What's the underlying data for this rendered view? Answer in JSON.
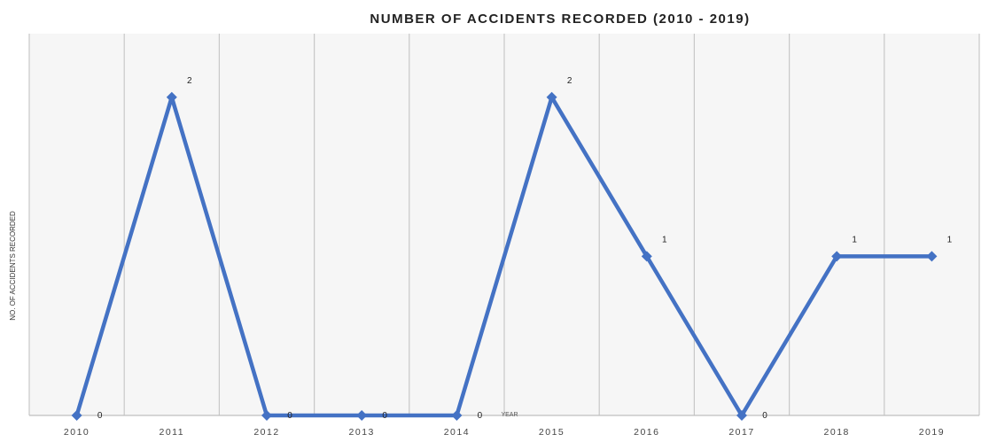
{
  "chart_data": {
    "type": "line",
    "title": "NUMBER OF ACCIDENTS RECORDED (2010 - 2019)",
    "xlabel": "YEAR",
    "ylabel": "NO. OF ACCIDENTS RECORDED",
    "categories": [
      "2010",
      "2011",
      "2012",
      "2013",
      "2014",
      "2015",
      "2016",
      "2017",
      "2018",
      "2019"
    ],
    "series": [
      {
        "values": [
          0,
          2,
          0,
          0,
          0,
          2,
          1,
          0,
          1,
          1
        ],
        "color": "#4472c4"
      }
    ],
    "data_labels": [
      "0",
      "2",
      "0",
      "0",
      "0",
      "2",
      "1",
      "0",
      "1",
      "1"
    ],
    "ylim": [
      0,
      2.4
    ],
    "grid": "vertical",
    "legend": "none",
    "colors": {
      "line": "#4472c4",
      "grid": "#c8c8c8",
      "plot_bg": "#f6f6f6",
      "text": "#222222"
    }
  }
}
